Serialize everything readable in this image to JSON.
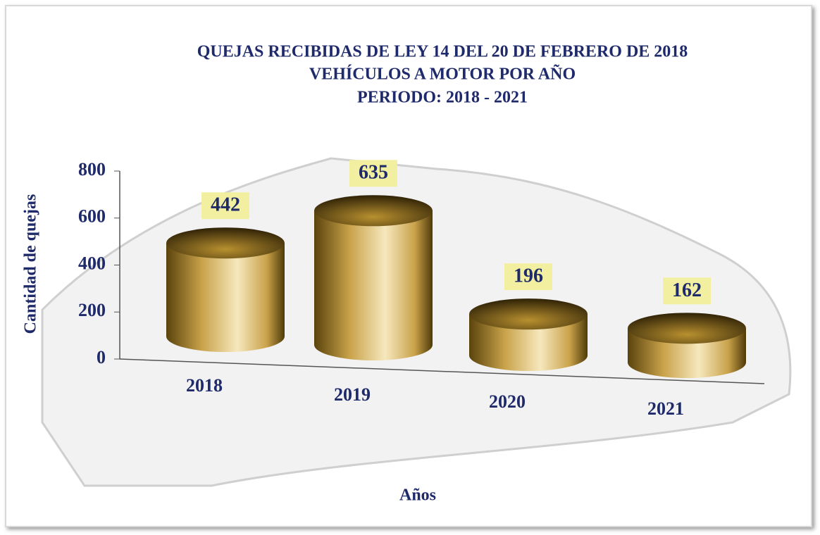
{
  "chart_data": {
    "type": "bar",
    "title": [
      "QUEJAS RECIBIDAS DE LEY 14 DEL 20 DE FEBRERO DE 2018",
      "VEHÍCULOS A MOTOR POR AÑO",
      "PERIODO: 2018 - 2021"
    ],
    "categories": [
      "2018",
      "2019",
      "2020",
      "2021"
    ],
    "values": [
      442,
      635,
      196,
      162
    ],
    "color": "#c9a24a",
    "ylim": [
      0,
      800
    ],
    "yticks": [
      0,
      200,
      400,
      600,
      800
    ],
    "y_label": "Cantidad de quejas",
    "x_label": "Años"
  }
}
